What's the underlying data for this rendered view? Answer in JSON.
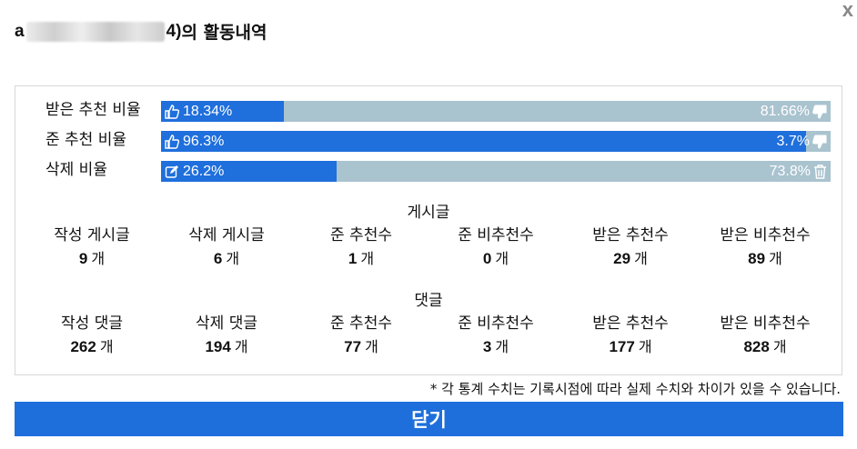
{
  "dialog": {
    "close_icon_glyph": "x",
    "title_id_start": "a",
    "title_id_end": "4)",
    "title_suffix": "의 활동내역"
  },
  "ratios": [
    {
      "label": "받은 추천 비율",
      "left_text": "18.34%",
      "right_text": "81.66%",
      "fill_percent": 18.34,
      "left_icon": "thumbs-up-icon",
      "right_icon": "thumbs-down-icon"
    },
    {
      "label": "준 추천 비율",
      "left_text": "96.3%",
      "right_text": "3.7%",
      "fill_percent": 96.3,
      "left_icon": "thumbs-up-icon",
      "right_icon": "thumbs-down-icon"
    },
    {
      "label": "삭제 비율",
      "left_text": "26.2%",
      "right_text": "73.8%",
      "fill_percent": 26.2,
      "left_icon": "edit-icon",
      "right_icon": "trash-icon"
    }
  ],
  "posts": {
    "title": "게시글",
    "stats": [
      {
        "label": "작성 게시글",
        "value": "9",
        "unit": "개"
      },
      {
        "label": "삭제 게시글",
        "value": "6",
        "unit": "개"
      },
      {
        "label": "준 추천수",
        "value": "1",
        "unit": "개"
      },
      {
        "label": "준 비추천수",
        "value": "0",
        "unit": "개"
      },
      {
        "label": "받은 추천수",
        "value": "29",
        "unit": "개"
      },
      {
        "label": "받은 비추천수",
        "value": "89",
        "unit": "개"
      }
    ]
  },
  "comments": {
    "title": "댓글",
    "stats": [
      {
        "label": "작성 댓글",
        "value": "262",
        "unit": "개"
      },
      {
        "label": "삭제 댓글",
        "value": "194",
        "unit": "개"
      },
      {
        "label": "준 추천수",
        "value": "77",
        "unit": "개"
      },
      {
        "label": "준 비추천수",
        "value": "3",
        "unit": "개"
      },
      {
        "label": "받은 추천수",
        "value": "177",
        "unit": "개"
      },
      {
        "label": "받은 비추천수",
        "value": "828",
        "unit": "개"
      }
    ]
  },
  "note": "* 각 통계 수치는 기록시점에 따라 실제 수치와 차이가 있을 수 있습니다.",
  "close_button_label": "닫기",
  "colors": {
    "accent": "#1f6fdc",
    "track": "#a9c3cf"
  }
}
